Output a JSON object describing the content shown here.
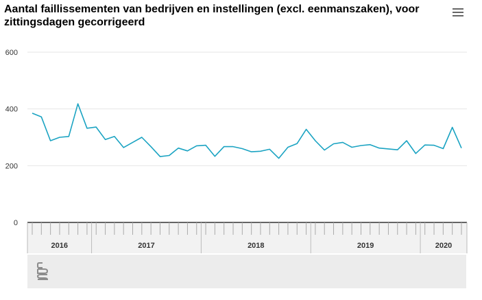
{
  "title": "Aantal faillissementen van bedrijven en instellingen (excl. eenmanszaken), voor zittingsdagen gecorrigeerd",
  "menu": {
    "icon": "hamburger-menu-icon"
  },
  "colors": {
    "series": "#1aa3c2",
    "grid": "#e6e6e6",
    "axis": "#333333",
    "footer": "#ececec"
  },
  "logo": {
    "icon": "cbs-logo-icon"
  },
  "chart_data": {
    "type": "line",
    "title": "Aantal faillissementen van bedrijven en instellingen (excl. eenmanszaken), voor zittingsdagen gecorrigeerd",
    "xlabel": "",
    "ylabel": "",
    "ylim": [
      0,
      600
    ],
    "yticks": [
      0,
      200,
      400,
      600
    ],
    "grid": true,
    "legend": "none",
    "years": [
      {
        "label": "2016",
        "months": 7
      },
      {
        "label": "2017",
        "months": 12
      },
      {
        "label": "2018",
        "months": 12
      },
      {
        "label": "2019",
        "months": 12
      },
      {
        "label": "2020",
        "months": 5
      }
    ],
    "x": [
      "2016-06",
      "2016-07",
      "2016-08",
      "2016-09",
      "2016-10",
      "2016-11",
      "2016-12",
      "2017-01",
      "2017-02",
      "2017-03",
      "2017-04",
      "2017-05",
      "2017-06",
      "2017-07",
      "2017-08",
      "2017-09",
      "2017-10",
      "2017-11",
      "2017-12",
      "2018-01",
      "2018-02",
      "2018-03",
      "2018-04",
      "2018-05",
      "2018-06",
      "2018-07",
      "2018-08",
      "2018-09",
      "2018-10",
      "2018-11",
      "2018-12",
      "2019-01",
      "2019-02",
      "2019-03",
      "2019-04",
      "2019-05",
      "2019-06",
      "2019-07",
      "2019-08",
      "2019-09",
      "2019-10",
      "2019-11",
      "2019-12",
      "2020-01",
      "2020-02",
      "2020-03",
      "2020-04",
      "2020-05"
    ],
    "series": [
      {
        "values": [
          385,
          372,
          288,
          300,
          303,
          418,
          332,
          336,
          292,
          303,
          264,
          282,
          300,
          267,
          232,
          236,
          262,
          252,
          270,
          272,
          233,
          267,
          267,
          260,
          249,
          251,
          258,
          226,
          265,
          278,
          328,
          288,
          255,
          277,
          282,
          265,
          271,
          274,
          262,
          259,
          256,
          288,
          243,
          273,
          272,
          260,
          335,
          262
        ]
      }
    ]
  }
}
